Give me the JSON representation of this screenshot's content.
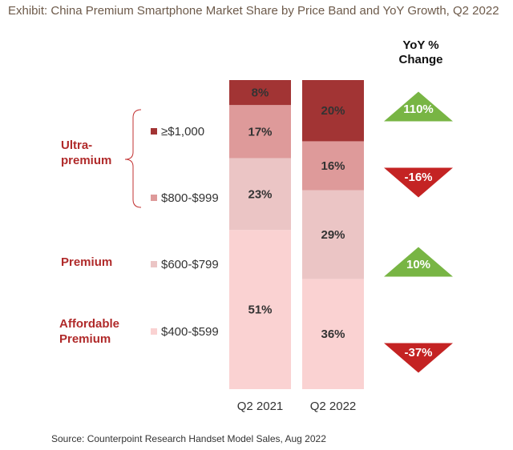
{
  "title": "Exhibit: China Premium Smartphone Market Share by Price Band and YoY Growth, Q2 2022",
  "source": "Source: Counterpoint Research Handset Model Sales, Aug 2022",
  "yoy_header": [
    "YoY %",
    "Change"
  ],
  "groups": {
    "ultra_premium": [
      "Ultra-",
      "premium"
    ],
    "premium": "Premium",
    "affordable": [
      "Affordable",
      "Premium"
    ]
  },
  "colors": {
    "band_1000": "#a23434",
    "band_800": "#de9a9a",
    "band_600": "#ebc5c5",
    "band_400": "#fad2d2",
    "up": "#78b544",
    "down": "#c42323",
    "group_text": "#b02a2a"
  },
  "chart_data": {
    "type": "bar",
    "stacked": true,
    "categories": [
      "Q2 2021",
      "Q2 2022"
    ],
    "ylim": [
      0,
      100
    ],
    "legend_placement": "left",
    "series": [
      {
        "name": "$400-$599",
        "values": [
          51,
          36
        ],
        "labels": [
          "51%",
          "36%"
        ]
      },
      {
        "name": "$600-$799",
        "values": [
          23,
          29
        ],
        "labels": [
          "23%",
          "29%"
        ]
      },
      {
        "name": "$800-$999",
        "values": [
          17,
          16
        ],
        "labels": [
          "17%",
          "16%"
        ]
      },
      {
        "name": "≥$1,000",
        "values": [
          8,
          20
        ],
        "labels": [
          "8%",
          "20%"
        ]
      }
    ],
    "yoy_change": [
      {
        "band": "≥$1,000",
        "value": 110,
        "label": "110%"
      },
      {
        "band": "$800-$999",
        "value": -16,
        "label": "-16%"
      },
      {
        "band": "$600-$799",
        "value": 10,
        "label": "10%"
      },
      {
        "band": "$400-$599",
        "value": -37,
        "label": "-37%"
      }
    ]
  }
}
